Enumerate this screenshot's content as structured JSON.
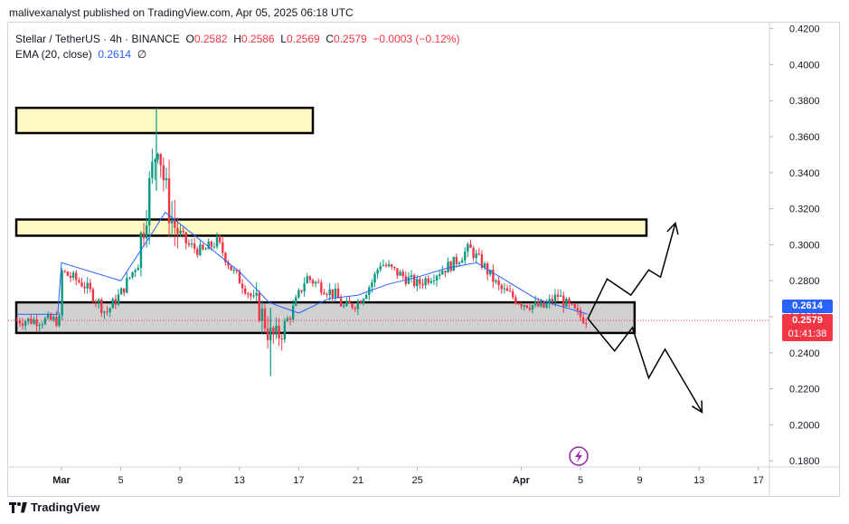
{
  "header": {
    "publisher": "malivexanalyst published on TradingView.com, Apr 05, 2025 06:18 UTC"
  },
  "legend": {
    "symbol": "Stellar / TetherUS · 4h · BINANCE",
    "o_label": "O",
    "o": "0.2582",
    "h_label": "H",
    "h": "0.2586",
    "l_label": "L",
    "l": "0.2569",
    "c_label": "C",
    "c": "0.2579",
    "change": "−0.0003 (−0.12%)",
    "ema_label": "EMA (20, close)",
    "ema_value": "0.2614",
    "ema_extra": "∅"
  },
  "price_tags": {
    "ema": "0.2614",
    "last": "0.2579",
    "countdown": "01:41:38"
  },
  "footer": {
    "brand": "TradingView"
  },
  "colors": {
    "up": "#089981",
    "down": "#f23645",
    "ema": "#2962ff",
    "zone_yellow": "#fff9c4",
    "zone_gray": "#d1d1d1"
  },
  "icons": {
    "lightning": "lightning-icon"
  },
  "chart_data": {
    "type": "candlestick",
    "symbol": "Stellar / TetherUS",
    "interval": "4h",
    "exchange": "BINANCE",
    "x_ticks": [
      "Mar",
      "5",
      "9",
      "13",
      "17",
      "21",
      "25",
      "Apr",
      "5",
      "9",
      "13",
      "17"
    ],
    "y_ticks": [
      "0.4200",
      "0.4000",
      "0.3800",
      "0.3600",
      "0.3400",
      "0.3200",
      "0.3000",
      "0.2800",
      "0.2600",
      "0.2400",
      "0.2200",
      "0.2000",
      "0.1800"
    ],
    "ylim": [
      0.175,
      0.425
    ],
    "price_path": [
      [
        0,
        0.285
      ],
      [
        1.5,
        0.278
      ],
      [
        2.5,
        0.268
      ],
      [
        3,
        0.262
      ],
      [
        4,
        0.273
      ],
      [
        5,
        0.288
      ],
      [
        5.5,
        0.31
      ],
      [
        6,
        0.335
      ],
      [
        6.5,
        0.36
      ],
      [
        7,
        0.33
      ],
      [
        7.5,
        0.312
      ],
      [
        8.5,
        0.3
      ],
      [
        9.5,
        0.296
      ],
      [
        10.5,
        0.302
      ],
      [
        11.5,
        0.286
      ],
      [
        12.5,
        0.275
      ],
      [
        13.5,
        0.262
      ],
      [
        14,
        0.25
      ],
      [
        14.5,
        0.248
      ],
      [
        15.5,
        0.262
      ],
      [
        16.5,
        0.282
      ],
      [
        17.5,
        0.277
      ],
      [
        18.5,
        0.272
      ],
      [
        19,
        0.265
      ],
      [
        20,
        0.268
      ],
      [
        21,
        0.28
      ],
      [
        21.5,
        0.29
      ],
      [
        22.5,
        0.285
      ],
      [
        24,
        0.278
      ],
      [
        25,
        0.283
      ],
      [
        26.5,
        0.29
      ],
      [
        27.5,
        0.298
      ],
      [
        28.5,
        0.288
      ],
      [
        29.5,
        0.276
      ],
      [
        31,
        0.268
      ],
      [
        32.5,
        0.265
      ],
      [
        33.5,
        0.272
      ],
      [
        34,
        0.267
      ],
      [
        35,
        0.26
      ],
      [
        35.5,
        0.258
      ]
    ],
    "ema_path": [
      [
        0,
        0.29
      ],
      [
        4,
        0.28
      ],
      [
        6,
        0.305
      ],
      [
        7,
        0.318
      ],
      [
        9,
        0.305
      ],
      [
        12,
        0.285
      ],
      [
        14,
        0.268
      ],
      [
        16,
        0.262
      ],
      [
        18,
        0.27
      ],
      [
        20,
        0.272
      ],
      [
        22,
        0.278
      ],
      [
        24,
        0.282
      ],
      [
        26,
        0.287
      ],
      [
        28,
        0.29
      ],
      [
        30,
        0.28
      ],
      [
        32,
        0.27
      ],
      [
        34,
        0.265
      ],
      [
        35.5,
        0.2614
      ]
    ],
    "zones": [
      {
        "name": "resistance-high",
        "x": [
          -2.5,
          17.5
        ],
        "y": [
          0.362,
          0.376
        ],
        "color": "#fff9c4"
      },
      {
        "name": "resistance-mid",
        "x": [
          -2.5,
          40
        ],
        "y": [
          0.305,
          0.314
        ],
        "color": "#fff9c4"
      },
      {
        "name": "support",
        "x": [
          -2.5,
          39.2
        ],
        "y": [
          0.251,
          0.268
        ],
        "color": "#d1d1d1"
      }
    ],
    "projection_up": [
      [
        35.5,
        0.259
      ],
      [
        36.8,
        0.281
      ],
      [
        38.4,
        0.272
      ],
      [
        39.6,
        0.286
      ],
      [
        40.4,
        0.282
      ],
      [
        41.4,
        0.312
      ]
    ],
    "projection_down": [
      [
        35.5,
        0.259
      ],
      [
        37.3,
        0.241
      ],
      [
        38.5,
        0.254
      ],
      [
        39.6,
        0.226
      ],
      [
        40.7,
        0.242
      ],
      [
        43.2,
        0.207
      ]
    ],
    "last_price": 0.2579,
    "ema_value": 0.2614
  }
}
